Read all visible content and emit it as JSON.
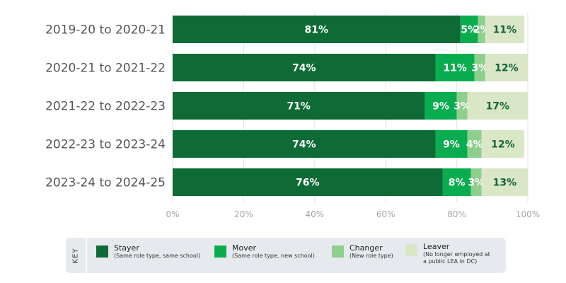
{
  "chart_data": {
    "type": "bar",
    "orientation": "horizontal",
    "stacked": true,
    "categories": [
      "2019-20 to 2020-21",
      "2020-21 to 2021-22",
      "2021-22 to 2022-23",
      "2022-23 to 2023-24",
      "2023-24 to 2024-25"
    ],
    "series": [
      {
        "name": "Stayer",
        "values": [
          81,
          74,
          71,
          74,
          76
        ],
        "labels": [
          "81%",
          "74%",
          "71%",
          "74%",
          "76%"
        ],
        "color": "#0e6b35",
        "label_color": "#ffffff"
      },
      {
        "name": "Mover",
        "values": [
          5,
          11,
          9,
          9,
          8
        ],
        "labels": [
          "5%",
          "11%",
          "9%",
          "9%",
          "8%"
        ],
        "color": "#09ad4f",
        "label_color": "#ffffff"
      },
      {
        "name": "Changer",
        "values": [
          2,
          3,
          3,
          4,
          3
        ],
        "labels": [
          "2%",
          "3%",
          "3%",
          "4%",
          "3%"
        ],
        "color": "#8fcf8d",
        "label_color": "#ffffff"
      },
      {
        "name": "Leaver",
        "values": [
          11,
          12,
          17,
          12,
          13
        ],
        "labels": [
          "11%",
          "12%",
          "17%",
          "12%",
          "13%"
        ],
        "color": "#d9e7c7",
        "label_color": "#15633a"
      }
    ],
    "xlim": [
      0,
      100
    ],
    "x_ticks": [
      "0%",
      "20%",
      "40%",
      "60%",
      "80%",
      "100%"
    ],
    "grid": true,
    "legend_placement": "bottom"
  },
  "legend": {
    "title": "KEY",
    "items": [
      {
        "name": "Stayer",
        "desc": [
          "(Same role type, same school)"
        ],
        "color": "#0e6b35"
      },
      {
        "name": "Mover",
        "desc": [
          "(Same role type, new school)"
        ],
        "color": "#09ad4f"
      },
      {
        "name": "Changer",
        "desc": [
          "(New role type)"
        ],
        "color": "#8fcf8d"
      },
      {
        "name": "Leaver",
        "desc": [
          "(No longer employed at",
          "a public LEA in DC)"
        ],
        "color": "#d9e7c7"
      }
    ]
  }
}
